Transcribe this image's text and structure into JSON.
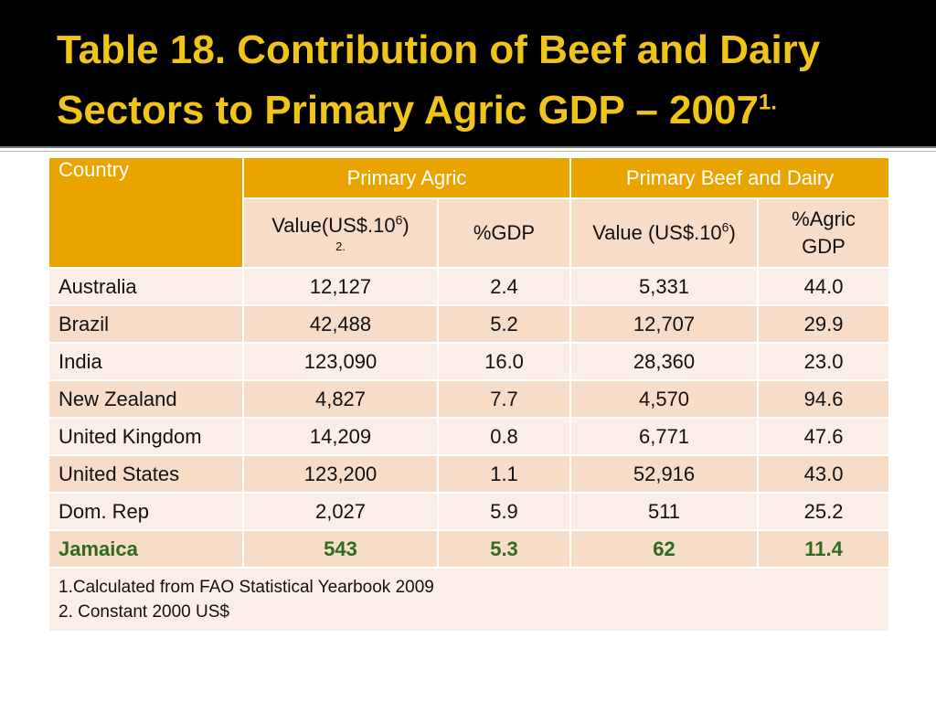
{
  "title": {
    "line1": "Table 18.  Contribution of Beef and Dairy",
    "line2": "Sectors to Primary Agric GDP – 2007",
    "line2_sup": "1."
  },
  "table": {
    "header": {
      "country": "Country",
      "primary_agric": "Primary Agric",
      "primary_beef_dairy": "Primary Beef and Dairy",
      "pa_value": "Value(US$.10",
      "pa_value_exp": "6",
      "pa_value_close": ")",
      "pa_value_note": "2.",
      "pa_gdp": "%GDP",
      "bd_value": "Value (US$.10",
      "bd_value_exp": "6",
      "bd_value_close": ")",
      "bd_gdp": "%Agric GDP"
    },
    "rows": [
      {
        "country": "Australia",
        "pa_value": "12,127",
        "pa_gdp": "2.4",
        "bd_value": "5,331",
        "bd_gdp": "44.0"
      },
      {
        "country": "Brazil",
        "pa_value": "42,488",
        "pa_gdp": "5.2",
        "bd_value": "12,707",
        "bd_gdp": "29.9"
      },
      {
        "country": "India",
        "pa_value": "123,090",
        "pa_gdp": "16.0",
        "bd_value": "28,360",
        "bd_gdp": "23.0"
      },
      {
        "country": "New Zealand",
        "pa_value": "4,827",
        "pa_gdp": "7.7",
        "bd_value": "4,570",
        "bd_gdp": "94.6"
      },
      {
        "country": "United Kingdom",
        "pa_value": "14,209",
        "pa_gdp": "0.8",
        "bd_value": "6,771",
        "bd_gdp": "47.6"
      },
      {
        "country": "United States",
        "pa_value": "123,200",
        "pa_gdp": "1.1",
        "bd_value": "52,916",
        "bd_gdp": "43.0"
      },
      {
        "country": "Dom. Rep",
        "pa_value": "2,027",
        "pa_gdp": "5.9",
        "bd_value": "511",
        "bd_gdp": "25.2"
      },
      {
        "country": "Jamaica",
        "pa_value": "543",
        "pa_gdp": "5.3",
        "bd_value": "62",
        "bd_gdp": "11.4"
      }
    ],
    "notes": {
      "note1": "1.Calculated from FAO Statistical Yearbook 2009",
      "note2": "2. Constant 2000 US$"
    }
  },
  "colors": {
    "title_bg": "#000000",
    "title_text": "#f0c418",
    "header_bg": "#e9a400",
    "row_light": "#fbeee6",
    "row_dark": "#f7dcc8",
    "highlight_text": "#2e6b20"
  }
}
